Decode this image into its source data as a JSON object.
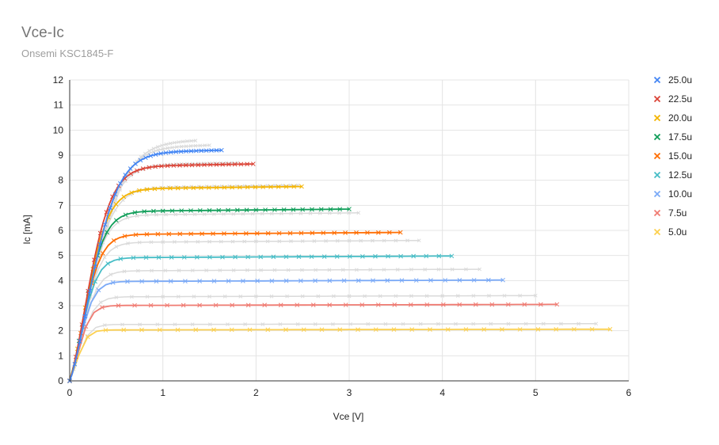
{
  "chart_data": {
    "type": "line",
    "title": "Vce-Ic",
    "subtitle": "Onsemi KSC1845-F",
    "xlabel": "Vce [V]",
    "ylabel": "Ic [mA]",
    "xlim": [
      0,
      6
    ],
    "ylim": [
      0,
      12
    ],
    "x_ticks": [
      "0",
      "1",
      "2",
      "3",
      "4",
      "5",
      "6"
    ],
    "y_ticks": [
      "0",
      "1",
      "2",
      "3",
      "4",
      "5",
      "6",
      "7",
      "8",
      "9",
      "10",
      "11",
      "12"
    ],
    "grid": true,
    "legend_position": "right",
    "series": [
      {
        "name": "25.0u",
        "color": "#4285f4",
        "ic_sat": 9.2,
        "vce_max": 1.63,
        "k": 0.7
      },
      {
        "name": "22.5u",
        "color": "#db4437",
        "ic_sat": 8.65,
        "vce_max": 1.97,
        "k": 0.6
      },
      {
        "name": "20.0u",
        "color": "#f4b400",
        "ic_sat": 7.75,
        "vce_max": 2.49,
        "k": 0.55
      },
      {
        "name": "17.5u",
        "color": "#0f9d58",
        "ic_sat": 6.85,
        "vce_max": 3.0,
        "k": 0.5
      },
      {
        "name": "15.0u",
        "color": "#ff6d01",
        "ic_sat": 5.92,
        "vce_max": 3.55,
        "k": 0.45
      },
      {
        "name": "12.5u",
        "color": "#46bdc6",
        "ic_sat": 4.98,
        "vce_max": 4.1,
        "k": 0.4
      },
      {
        "name": "10.0u",
        "color": "#7baaf7",
        "ic_sat": 4.02,
        "vce_max": 4.65,
        "k": 0.35
      },
      {
        "name": "7.5u",
        "color": "#f07b72",
        "ic_sat": 3.05,
        "vce_max": 5.23,
        "k": 0.3
      },
      {
        "name": "5.0u",
        "color": "#fcd04f",
        "ic_sat": 2.06,
        "vce_max": 5.8,
        "k": 0.25
      }
    ],
    "reference_series": [
      {
        "ic_sat": 9.6,
        "vce_max": 1.35,
        "k": 0.8
      },
      {
        "ic_sat": 9.4,
        "vce_max": 1.5,
        "k": 0.75
      },
      {
        "ic_sat": 8.7,
        "vce_max": 1.8,
        "k": 0.65
      },
      {
        "ic_sat": 7.8,
        "vce_max": 2.45,
        "k": 0.6
      },
      {
        "ic_sat": 6.7,
        "vce_max": 3.1,
        "k": 0.5
      },
      {
        "ic_sat": 5.6,
        "vce_max": 3.75,
        "k": 0.45
      },
      {
        "ic_sat": 4.45,
        "vce_max": 4.4,
        "k": 0.4
      },
      {
        "ic_sat": 3.4,
        "vce_max": 5.0,
        "k": 0.35
      },
      {
        "ic_sat": 2.28,
        "vce_max": 5.65,
        "k": 0.28
      }
    ],
    "reference_color": "#dadada"
  }
}
